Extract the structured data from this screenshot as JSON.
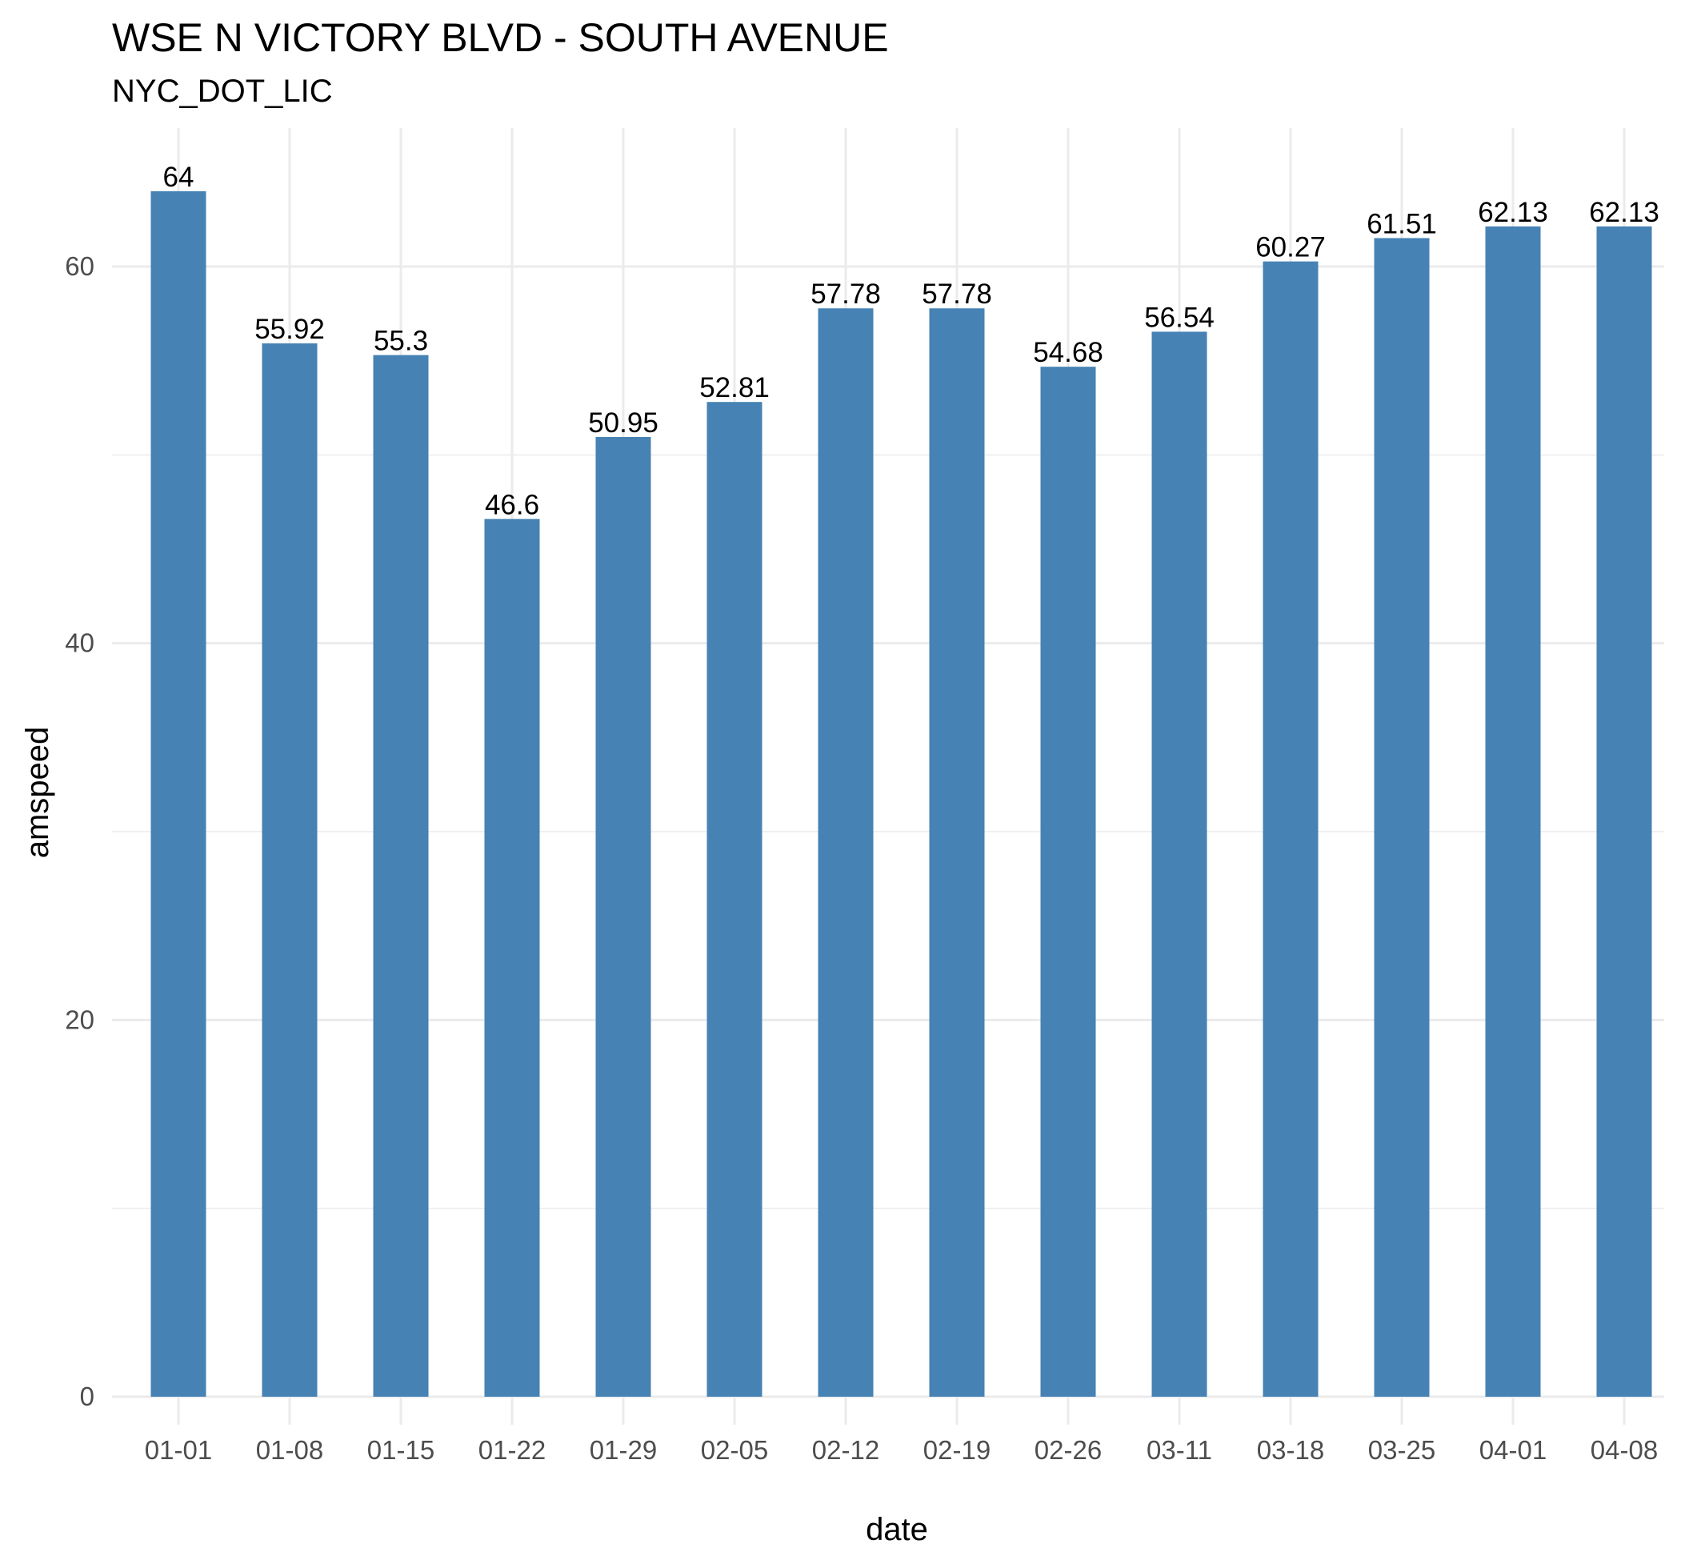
{
  "chart_data": {
    "type": "bar",
    "title": "WSE N VICTORY BLVD - SOUTH AVENUE",
    "subtitle": "NYC_DOT_LIC",
    "xlabel": "date",
    "ylabel": "amspeed",
    "categories": [
      "01-01",
      "01-08",
      "01-15",
      "01-22",
      "01-29",
      "02-05",
      "02-12",
      "02-19",
      "02-26",
      "03-11",
      "03-18",
      "03-25",
      "04-01",
      "04-08"
    ],
    "values": [
      64,
      55.92,
      55.3,
      46.6,
      50.95,
      52.81,
      57.78,
      57.78,
      54.68,
      56.54,
      60.27,
      61.51,
      62.13,
      62.13
    ],
    "data_labels": [
      "64",
      "55.92",
      "55.3",
      "46.6",
      "50.95",
      "52.81",
      "57.78",
      "57.78",
      "54.68",
      "56.54",
      "60.27",
      "61.51",
      "62.13",
      "62.13"
    ],
    "yticks": [
      0,
      20,
      40,
      60
    ],
    "ylim": [
      0,
      67
    ],
    "grid": true,
    "bar_color": "#4682B4",
    "grid_color": "#EBEBEB"
  }
}
